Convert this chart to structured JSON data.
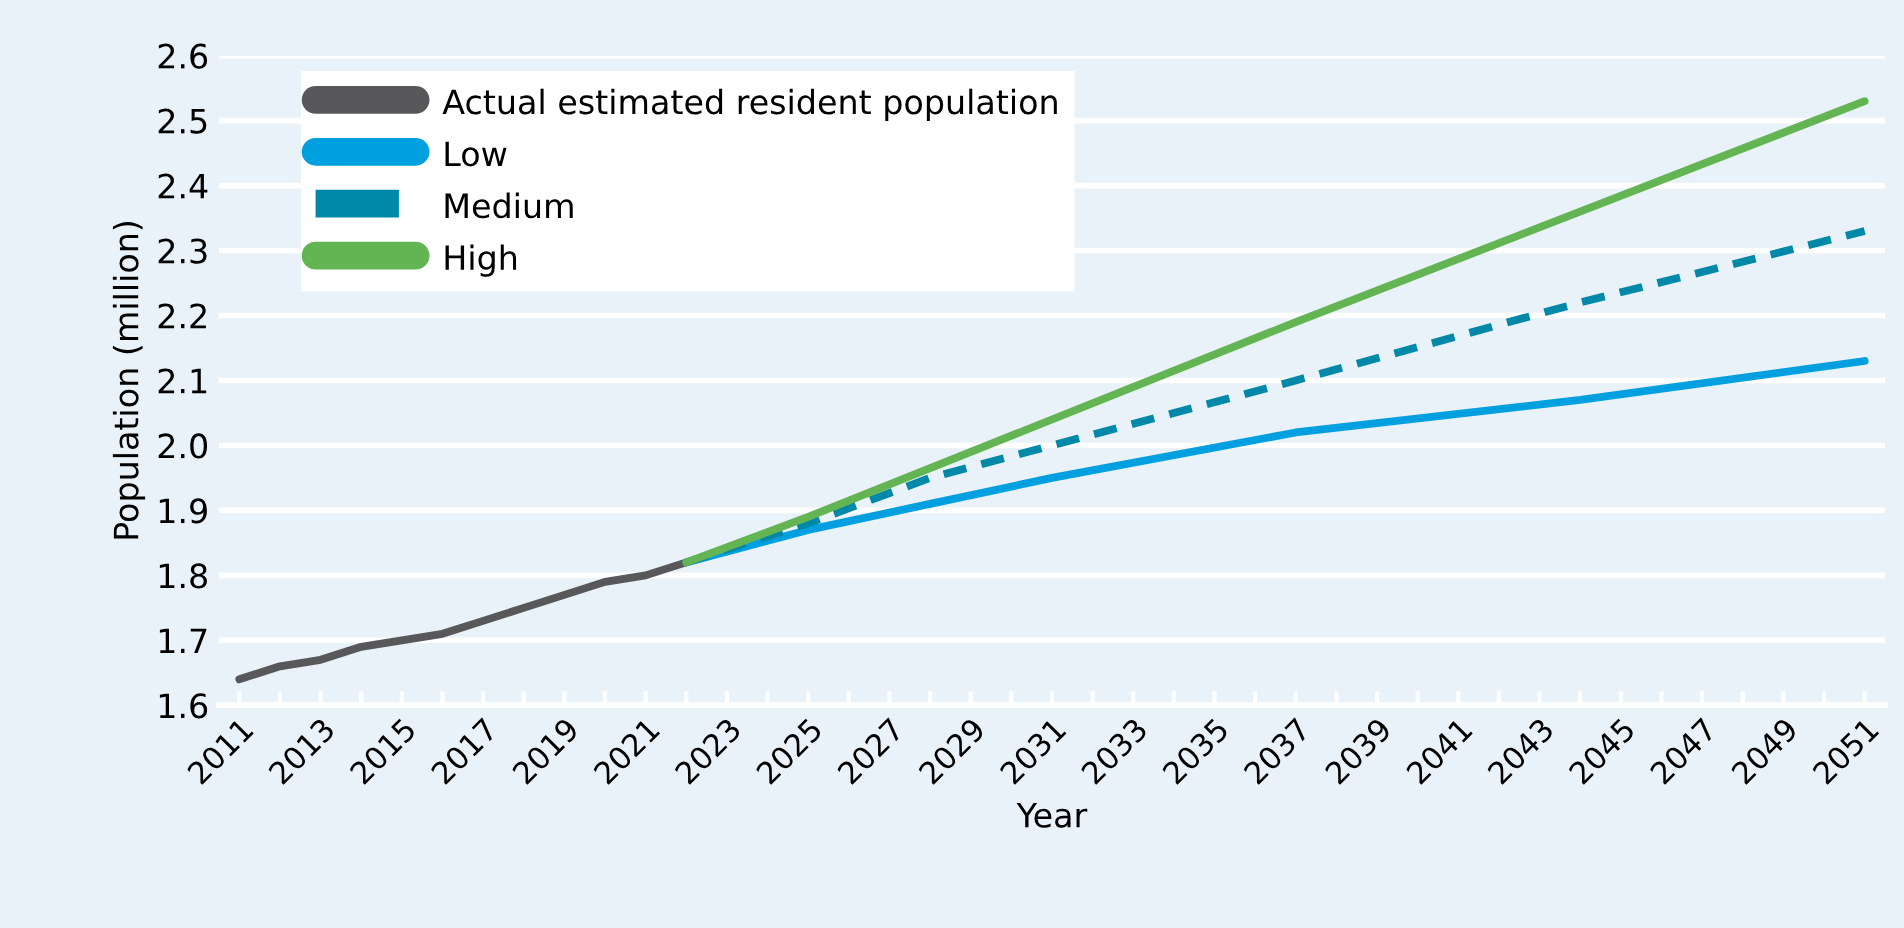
{
  "chart_data": {
    "type": "line",
    "xlabel": "Year",
    "ylabel": "Population (million)",
    "xlim": [
      2010.5,
      2051.5
    ],
    "ylim": [
      1.6,
      2.6
    ],
    "xticks": [
      2011,
      {
        "value": 2012,
        "label": null
      },
      2013,
      {
        "value": 2014,
        "label": null
      },
      2015,
      {
        "value": 2016,
        "label": null
      },
      2017,
      {
        "value": 2018,
        "label": null
      },
      2019,
      {
        "value": 2020,
        "label": null
      },
      2021,
      {
        "value": 2022,
        "label": null
      },
      2023,
      {
        "value": 2024,
        "label": null
      },
      2025,
      {
        "value": 2026,
        "label": null
      },
      2027,
      {
        "value": 2028,
        "label": null
      },
      2029,
      {
        "value": 2030,
        "label": null
      },
      2031,
      {
        "value": 2032,
        "label": null
      },
      2033,
      {
        "value": 2034,
        "label": null
      },
      2035,
      {
        "value": 2036,
        "label": null
      },
      2037,
      {
        "value": 2038,
        "label": null
      },
      2039,
      {
        "value": 2040,
        "label": null
      },
      2041,
      {
        "value": 2042,
        "label": null
      },
      2043,
      {
        "value": 2044,
        "label": null
      },
      2045,
      {
        "value": 2046,
        "label": null
      },
      2047,
      {
        "value": 2048,
        "label": null
      },
      2049,
      {
        "value": 2050,
        "label": null
      },
      2051
    ],
    "yticks": [
      1.6,
      1.7,
      1.8,
      1.9,
      {
        "value": 2.0,
        "label": "2.0"
      },
      2.1,
      2.2,
      2.3,
      2.4,
      2.5,
      2.6
    ],
    "grid": "y",
    "legend": "top left",
    "series": [
      {
        "name": "Actual estimated resident population",
        "color": "#58585a",
        "x": [
          2011,
          2012,
          2013,
          2014,
          2015,
          2016,
          2017,
          2018,
          2019,
          2020,
          2021,
          2022
        ],
        "values": [
          1.64,
          1.66,
          1.67,
          1.69,
          1.7,
          1.71,
          1.73,
          1.75,
          1.77,
          1.79,
          1.8,
          1.82
        ]
      },
      {
        "name": "Low",
        "color": "#00a0e0",
        "x": [
          2022,
          2025,
          2028,
          2031,
          2037,
          2044,
          2051
        ],
        "values": [
          1.82,
          1.87,
          1.91,
          1.95,
          2.02,
          2.07,
          2.13
        ]
      },
      {
        "name": "Medium",
        "color": "#0088a8",
        "line_style": "dashed",
        "x": [
          2022,
          2025,
          2028,
          2031,
          2037,
          2044,
          2051
        ],
        "values": [
          1.82,
          1.88,
          1.95,
          2.0,
          2.1,
          2.22,
          2.33
        ]
      },
      {
        "name": "High",
        "color": "#62b552",
        "x": [
          2022,
          2025,
          2037,
          2051
        ],
        "values": [
          1.82,
          1.89,
          2.19,
          2.53
        ]
      }
    ]
  }
}
